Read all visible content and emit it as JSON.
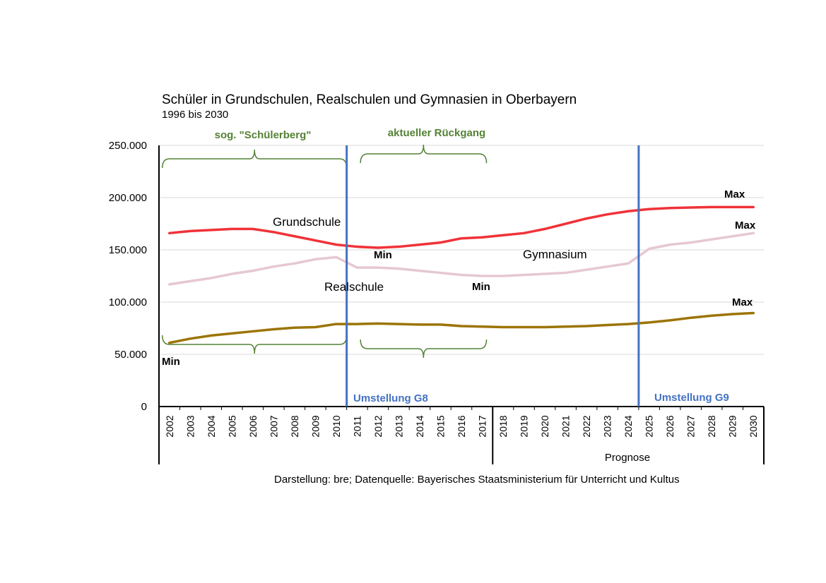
{
  "chart_data": {
    "type": "line",
    "title": "Schüler in Grundschulen, Realschulen und Gymnasien in Oberbayern",
    "subtitle": "1996 bis 2030",
    "xlabel": "",
    "ylabel": "",
    "x": [
      "2002",
      "2003",
      "2004",
      "2005",
      "2006",
      "2007",
      "2008",
      "2009",
      "2010",
      "2011",
      "2012",
      "2013",
      "2014",
      "2015",
      "2016",
      "2017",
      "2018",
      "2019",
      "2020",
      "2021",
      "2022",
      "2023",
      "2024",
      "2025",
      "2026",
      "2027",
      "2028",
      "2029",
      "2030"
    ],
    "ylim": [
      0,
      250000
    ],
    "yticks": [
      0,
      50000,
      100000,
      150000,
      200000,
      250000
    ],
    "ytick_labels": [
      "0",
      "50.000",
      "100.000",
      "150.000",
      "200.000",
      "250.000"
    ],
    "grid": true,
    "legend": "none",
    "series": [
      {
        "name": "Grundschule",
        "color": "#f03238",
        "values": [
          166000,
          168000,
          169000,
          170000,
          170000,
          167000,
          163000,
          159000,
          155000,
          153000,
          152000,
          153000,
          155000,
          157000,
          161000,
          162000,
          164000,
          166000,
          170000,
          175000,
          180000,
          184000,
          187000,
          189000,
          190000,
          190500,
          191000,
          191000,
          191000
        ]
      },
      {
        "name": "Gymnasium",
        "color": "#e6c8d0",
        "values": [
          117000,
          120000,
          123000,
          127000,
          130000,
          134000,
          137000,
          141000,
          143000,
          133000,
          133000,
          132000,
          130000,
          128000,
          126000,
          125000,
          125000,
          126000,
          127000,
          128000,
          131000,
          134000,
          137000,
          151000,
          155000,
          157000,
          160000,
          163000,
          166000
        ]
      },
      {
        "name": "Realschule",
        "color": "#9c7406",
        "values": [
          61000,
          65000,
          68000,
          70000,
          72000,
          74000,
          75500,
          76000,
          79000,
          79000,
          79500,
          79000,
          78500,
          78500,
          77000,
          76500,
          76000,
          76000,
          76000,
          76500,
          77000,
          78000,
          79000,
          80500,
          82500,
          85000,
          87000,
          88500,
          89500
        ]
      }
    ],
    "series_labels": [
      "Grundschule",
      "Gymnasium",
      "Realschule"
    ],
    "annotations": {
      "min_label": "Min",
      "max_label": "Max",
      "brace_schuelerberg": "sog. \"Schülerberg\"",
      "brace_rueckgang": "aktueller Rückgang",
      "umstellung_g8": "Umstellung G8",
      "umstellung_g9": "Umstellung G9",
      "umstellung_g8_x": 2010.5,
      "umstellung_g9_x": 2024.5,
      "schuelerberg_range": [
        2002,
        2010.5
      ],
      "rueckgang_range": [
        2011.5,
        2017
      ],
      "prognose_start": 2017.5,
      "prognose_label": "Prognose",
      "min_points": [
        {
          "series": "Realschule",
          "x": "2002"
        },
        {
          "series": "Grundschule",
          "x": "2012"
        },
        {
          "series": "Gymnasium",
          "x": "2017"
        }
      ],
      "max_points": [
        {
          "series": "Grundschule",
          "x": "2029"
        },
        {
          "series": "Gymnasium",
          "x": "2030"
        },
        {
          "series": "Realschule",
          "x": "2030"
        }
      ]
    },
    "source": "Darstellung: bre; Datenquelle: Bayerisches Staatsministerium für Unterricht und Kultus",
    "colors": {
      "grid": "#d9d9d9",
      "axis": "#000000",
      "brace": "#548235",
      "umstellung": "#4472c4"
    }
  }
}
